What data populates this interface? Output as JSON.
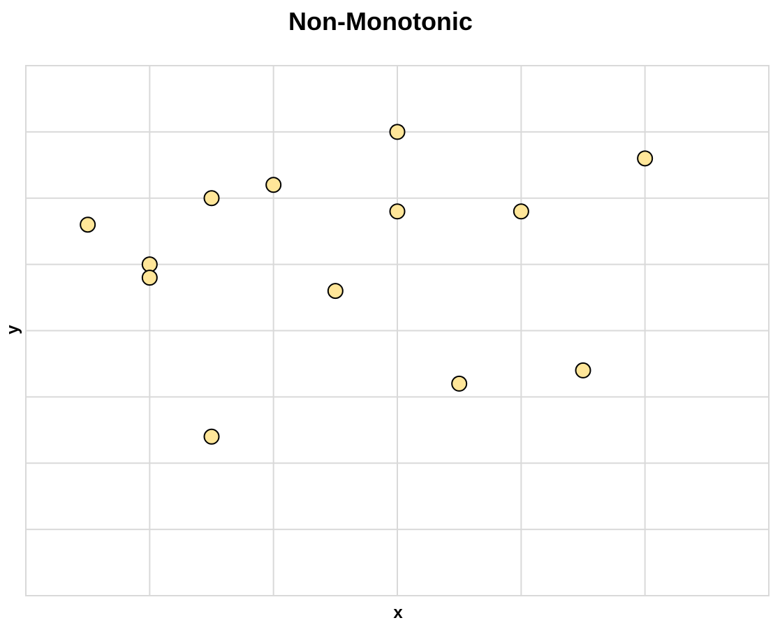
{
  "chart_data": {
    "type": "scatter",
    "title": "Non-Monotonic",
    "xlabel": "x",
    "ylabel": "y",
    "xlim": [
      0,
      12
    ],
    "ylim": [
      0,
      8
    ],
    "grid": true,
    "colors": {
      "point_fill": "#FFE699",
      "point_stroke": "#000000",
      "grid": "#D9D9D9"
    },
    "points": [
      {
        "x": 1,
        "y": 5.6
      },
      {
        "x": 2,
        "y": 5.0
      },
      {
        "x": 2,
        "y": 4.8
      },
      {
        "x": 3,
        "y": 6.0
      },
      {
        "x": 3,
        "y": 2.4
      },
      {
        "x": 4,
        "y": 6.2
      },
      {
        "x": 5,
        "y": 4.6
      },
      {
        "x": 6,
        "y": 7.0
      },
      {
        "x": 6,
        "y": 5.8
      },
      {
        "x": 7,
        "y": 3.2
      },
      {
        "x": 8,
        "y": 5.8
      },
      {
        "x": 9,
        "y": 3.4
      },
      {
        "x": 10,
        "y": 6.6
      }
    ]
  }
}
